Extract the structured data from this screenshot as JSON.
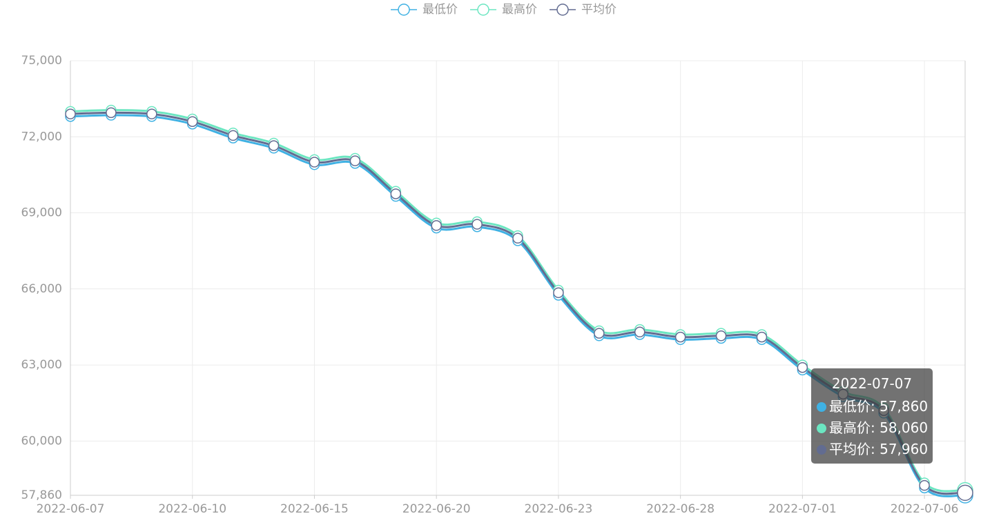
{
  "chart_data": {
    "type": "line",
    "smooth": true,
    "grid": true,
    "categories": [
      "2022-06-07",
      null,
      null,
      "2022-06-10",
      null,
      null,
      "2022-06-15",
      null,
      null,
      "2022-06-20",
      null,
      null,
      "2022-06-23",
      null,
      null,
      "2022-06-28",
      null,
      null,
      "2022-07-01",
      null,
      null,
      "2022-07-06",
      "2022-07-07"
    ],
    "series": [
      {
        "name": "最低价",
        "color": "#3fb1e3",
        "values": [
          72800,
          72850,
          72800,
          72500,
          71950,
          71550,
          70900,
          70950,
          69650,
          68400,
          68450,
          67900,
          65750,
          64150,
          64200,
          64000,
          64050,
          64000,
          62800,
          61750,
          61100,
          58150,
          57860
        ],
        "value_labels": [
          null,
          null,
          null,
          null,
          null,
          null,
          null,
          null,
          null,
          null,
          null,
          null,
          null,
          null,
          null,
          null,
          null,
          null,
          null,
          null,
          null,
          null,
          "57,860"
        ]
      },
      {
        "name": "最高价",
        "color": "#6be6c1",
        "values": [
          73000,
          73050,
          73000,
          72700,
          72150,
          71750,
          71100,
          71150,
          69850,
          68600,
          68650,
          68100,
          65950,
          64350,
          64400,
          64200,
          64250,
          64200,
          63000,
          61950,
          61300,
          58350,
          58060
        ],
        "value_labels": [
          null,
          null,
          null,
          null,
          null,
          null,
          null,
          null,
          null,
          null,
          null,
          null,
          null,
          null,
          null,
          null,
          null,
          null,
          null,
          null,
          null,
          null,
          "58,060"
        ]
      },
      {
        "name": "平均价",
        "color": "#626c91",
        "values": [
          72900,
          72950,
          72900,
          72600,
          72050,
          71650,
          71000,
          71050,
          69750,
          68500,
          68550,
          68000,
          65850,
          64250,
          64300,
          64100,
          64150,
          64100,
          62900,
          61850,
          61200,
          58250,
          57960
        ],
        "value_labels": [
          null,
          null,
          null,
          null,
          null,
          null,
          null,
          null,
          null,
          null,
          null,
          null,
          null,
          null,
          null,
          null,
          null,
          null,
          null,
          null,
          null,
          null,
          "57,960"
        ]
      }
    ],
    "ylim": [
      57860,
      75000
    ],
    "yticks": [
      {
        "value": 57860,
        "label": "57,860"
      },
      {
        "value": 60000,
        "label": "60,000"
      },
      {
        "value": 63000,
        "label": "63,000"
      },
      {
        "value": 66000,
        "label": "66,000"
      },
      {
        "value": 69000,
        "label": "69,000"
      },
      {
        "value": 72000,
        "label": "72,000"
      },
      {
        "value": 75000,
        "label": "75,000"
      }
    ]
  }
}
